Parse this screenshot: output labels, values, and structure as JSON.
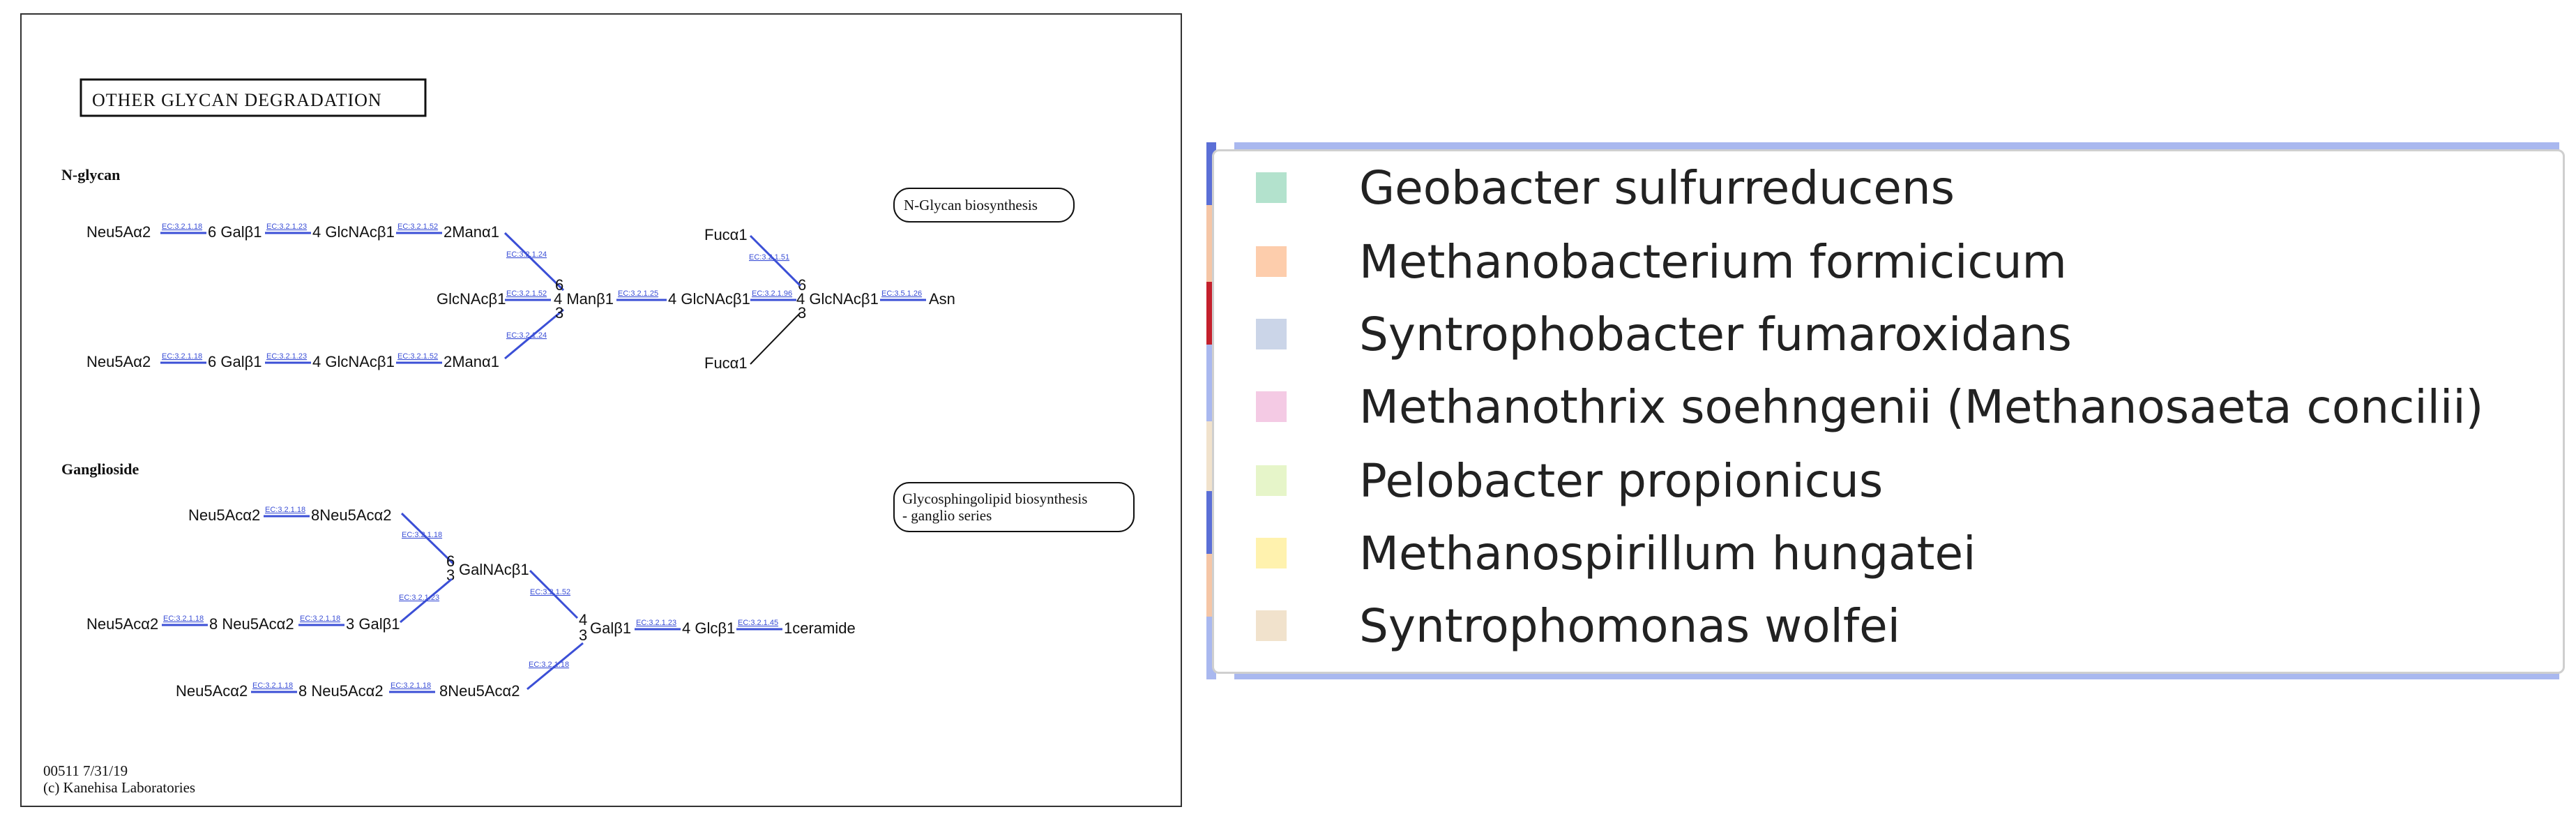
{
  "map": {
    "title": "OTHER GLYCAN DEGRADATION",
    "sections": {
      "n_glycan": "N-glycan",
      "ganglioside": "Ganglioside"
    },
    "links": {
      "n_glycan_biosynthesis": "N-Glycan biosynthesis",
      "gsl_line1": "Glycosphingolipid biosynthesis",
      "gsl_line2": "- ganglio series"
    },
    "footer": {
      "map_id": "00511  7/31/19",
      "copyright": "(c) Kanehisa Laboratories"
    },
    "n_glycan_nodes": {
      "upper_neu5ac": "Neu5Aα2",
      "upper_gal": "6 Galβ1",
      "upper_glcnac": "4 GlcNAcβ1",
      "upper_man": "2Manα1",
      "lower_neu5ac": "Neu5Aα2",
      "lower_gal": "6 Galβ1",
      "lower_glcnac": "4 GlcNAcβ1",
      "lower_man": "2Manα1",
      "bisect_glcnac": "GlcNAcβ1",
      "core_man": "4 Manβ1",
      "glcnac_1": "4 GlcNAcβ1",
      "glcnac_2": "4 GlcNAcβ1",
      "asn": "Asn",
      "fuc_upper": "Fucα1",
      "fuc_lower": "Fucα1",
      "pos6a": "6",
      "pos4a": "4",
      "pos3a": "3",
      "pos6b": "6",
      "pos4b": "4",
      "pos3b": "3"
    },
    "ganglioside_nodes": {
      "top_neu5ac": "Neu5Acα2",
      "top_neu5ac2": "8Neu5Acα2",
      "galnac": "GalNAcβ1",
      "mid_neu5ac": "Neu5Acα2",
      "mid_neu5ac2": "8 Neu5Acα2",
      "mid_gal": "3 Galβ1",
      "core_gal": "Galβ1",
      "glc": "4 Glcβ1",
      "ceramide": "1ceramide",
      "bot_neu5ac": "Neu5Acα2",
      "bot_neu5ac2": "8 Neu5Acα2",
      "bot_neu5ac3": "8Neu5Acα2",
      "pos6": "6",
      "pos3": "3",
      "pos4": "4",
      "pos3b": "3"
    },
    "ec_numbers": {
      "ec_3_2_1_18": "EC:3.2.1.18",
      "ec_3_2_1_23": "EC:3.2.1.23",
      "ec_3_2_1_52": "EC:3.2.1.52",
      "ec_3_2_1_24": "EC:3.2.1.24",
      "ec_3_2_1_25": "EC:3.2.1.25",
      "ec_3_2_1_96": "EC:3.2.1.96",
      "ec_3_2_1_51": "EC:3.2.1.51",
      "ec_3_5_1_26": "EC:3.5.1.26",
      "ec_3_2_1_45": "EC:3.2.1.45"
    }
  },
  "legend": {
    "items": [
      {
        "label": "Geobacter sulfurreducens",
        "color": "#b3e2cd"
      },
      {
        "label": "Methanobacterium formicicum",
        "color": "#fdcdac"
      },
      {
        "label": "Syntrophobacter fumaroxidans",
        "color": "#cbd5e8"
      },
      {
        "label": "Methanothrix soehngenii (Methanosaeta concilii)",
        "color": "#f4cae4"
      },
      {
        "label": "Pelobacter propionicus",
        "color": "#e6f5c9"
      },
      {
        "label": "Methanospirillum hungatei",
        "color": "#fff2ae"
      },
      {
        "label": "Syntrophomonas wolfei",
        "color": "#f1e2cc"
      }
    ]
  }
}
